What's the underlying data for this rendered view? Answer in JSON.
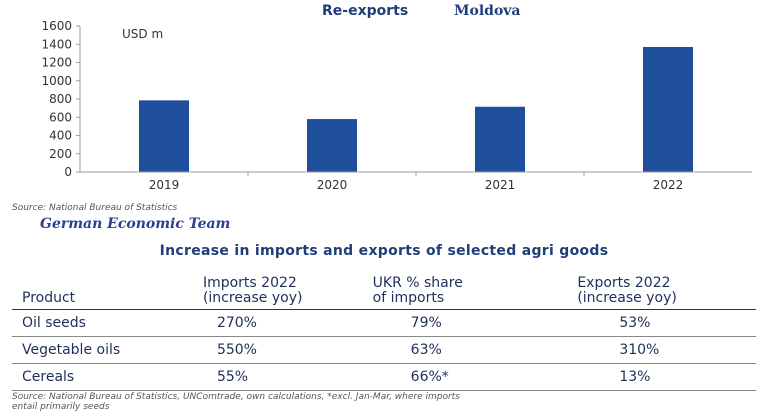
{
  "chart_data": {
    "type": "bar",
    "title": "Re-exports",
    "title_country": "Moldova",
    "unit_label": "USD m",
    "categories": [
      "2019",
      "2020",
      "2021",
      "2022"
    ],
    "values": [
      785,
      580,
      715,
      1370
    ],
    "ylim": [
      0,
      1600
    ],
    "yticks": [
      0,
      200,
      400,
      600,
      800,
      1000,
      1200,
      1400,
      1600
    ],
    "grid": false,
    "bar_color": "#1f4e9c"
  },
  "source_chart": "Source: National Bureau of Statistics",
  "team_label": "German Economic Team",
  "table": {
    "title": "Increase in imports and exports of selected agri goods",
    "headers": {
      "product": "Product",
      "imports_l1": "Imports 2022",
      "imports_l2": "(increase yoy)",
      "share_l1": "UKR % share",
      "share_l2": "of imports",
      "exports_l1": "Exports 2022",
      "exports_l2": "(increase yoy)"
    },
    "rows": [
      {
        "product": "Oil seeds",
        "imports": "270%",
        "share": "79%",
        "exports": "53%"
      },
      {
        "product": "Vegetable oils",
        "imports": "550%",
        "share": "63%",
        "exports": "310%"
      },
      {
        "product": "Cereals",
        "imports": "55%",
        "share": "66%*",
        "exports": "13%"
      }
    ]
  },
  "source_table_l1": "Source: National Bureau of Statistics, UNComtrade, own calculations, *excl. Jan-Mar, where imports",
  "source_table_l2": "entail primarily seeds"
}
